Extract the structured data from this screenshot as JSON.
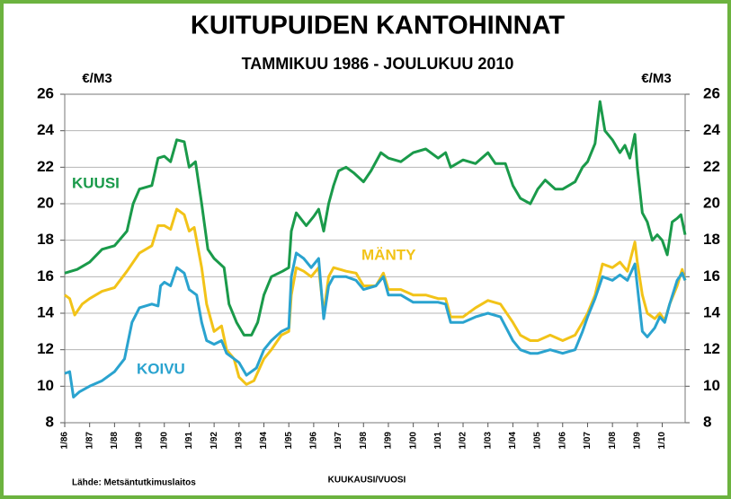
{
  "chart_data": {
    "type": "line",
    "title": "KUITUPUIDEN KANTOHINNAT",
    "subtitle": "TAMMIKUU 1986 - JOULUKUU 2010",
    "y_label": "€/M3",
    "y2_label": "€/M3",
    "x_label": "KUUKAUSI/VUOSI",
    "source": "Lähde: Metsäntutkimuslaitos",
    "xlim": [
      1986,
      2010.92
    ],
    "xticks": [
      {
        "value": 1986,
        "label": "1/86"
      },
      {
        "value": 1987,
        "label": "1/87"
      },
      {
        "value": 1988,
        "label": "1/88"
      },
      {
        "value": 1989,
        "label": "1/89"
      },
      {
        "value": 1990,
        "label": "1/90"
      },
      {
        "value": 1991,
        "label": "1/91"
      },
      {
        "value": 1992,
        "label": "1/92"
      },
      {
        "value": 1993,
        "label": "1/93"
      },
      {
        "value": 1994,
        "label": "1/94"
      },
      {
        "value": 1995,
        "label": "1/95"
      },
      {
        "value": 1996,
        "label": "1/96"
      },
      {
        "value": 1997,
        "label": "1/97"
      },
      {
        "value": 1998,
        "label": "1/98"
      },
      {
        "value": 1999,
        "label": "1/99"
      },
      {
        "value": 2000,
        "label": "1/00"
      },
      {
        "value": 2001,
        "label": "1/01"
      },
      {
        "value": 2002,
        "label": "1/02"
      },
      {
        "value": 2003,
        "label": "1/03"
      },
      {
        "value": 2004,
        "label": "1/04"
      },
      {
        "value": 2005,
        "label": "1/05"
      },
      {
        "value": 2006,
        "label": "1/06"
      },
      {
        "value": 2007,
        "label": "1/07"
      },
      {
        "value": 2008,
        "label": "1/08"
      },
      {
        "value": 2009,
        "label": "1/09"
      },
      {
        "value": 2010,
        "label": "1/10"
      }
    ],
    "ylim": [
      8,
      26
    ],
    "yticks": [
      8,
      10,
      12,
      14,
      16,
      18,
      20,
      22,
      24,
      26
    ],
    "y2lim": [
      8,
      26
    ],
    "y2ticks": [
      8,
      10,
      12,
      14,
      16,
      18,
      20,
      22,
      24,
      26
    ],
    "grid": true,
    "series": [
      {
        "name": "KUUSI",
        "color": "#1a9a4a",
        "x": [
          1986.0,
          1986.5,
          1987.0,
          1987.5,
          1988.0,
          1988.5,
          1988.75,
          1989.0,
          1989.5,
          1989.75,
          1990.0,
          1990.25,
          1990.5,
          1990.8,
          1991.0,
          1991.25,
          1991.5,
          1991.75,
          1992.0,
          1992.4,
          1992.6,
          1992.9,
          1993.2,
          1993.5,
          1993.75,
          1994.0,
          1994.3,
          1994.75,
          1995.0,
          1995.1,
          1995.3,
          1995.7,
          1996.0,
          1996.2,
          1996.4,
          1996.6,
          1996.8,
          1997.0,
          1997.3,
          1997.6,
          1998.0,
          1998.3,
          1998.7,
          1999.0,
          1999.5,
          2000.0,
          2000.5,
          2001.0,
          2001.3,
          2001.5,
          2002.0,
          2002.5,
          2003.0,
          2003.3,
          2003.7,
          2004.0,
          2004.3,
          2004.7,
          2005.0,
          2005.3,
          2005.7,
          2006.0,
          2006.5,
          2006.8,
          2007.0,
          2007.3,
          2007.5,
          2007.7,
          2008.0,
          2008.3,
          2008.5,
          2008.7,
          2008.9,
          2009.0,
          2009.2,
          2009.4,
          2009.6,
          2009.8,
          2010.0,
          2010.2,
          2010.4,
          2010.6,
          2010.75,
          2010.92
        ],
        "values": [
          16.2,
          16.4,
          16.8,
          17.5,
          17.7,
          18.5,
          20.0,
          20.8,
          21.0,
          22.5,
          22.6,
          22.3,
          23.5,
          23.4,
          22.0,
          22.3,
          20.0,
          17.5,
          17.0,
          16.5,
          14.5,
          13.5,
          12.8,
          12.8,
          13.5,
          15.0,
          16.0,
          16.3,
          16.5,
          18.5,
          19.5,
          18.8,
          19.3,
          19.7,
          18.5,
          20.0,
          21.0,
          21.8,
          22.0,
          21.7,
          21.2,
          21.8,
          22.8,
          22.5,
          22.3,
          22.8,
          23.0,
          22.5,
          22.8,
          22.0,
          22.4,
          22.2,
          22.8,
          22.2,
          22.2,
          21.0,
          20.3,
          20.0,
          20.8,
          21.3,
          20.8,
          20.8,
          21.2,
          22.0,
          22.3,
          23.3,
          25.6,
          24.0,
          23.5,
          22.8,
          23.2,
          22.5,
          23.8,
          22.0,
          19.5,
          19.0,
          18.0,
          18.3,
          18.0,
          17.2,
          19.0,
          19.2,
          19.4,
          18.3
        ]
      },
      {
        "name": "MÄNTY",
        "color": "#f2c318",
        "x": [
          1986.0,
          1986.2,
          1986.4,
          1986.7,
          1987.0,
          1987.5,
          1988.0,
          1988.5,
          1989.0,
          1989.5,
          1989.75,
          1990.0,
          1990.25,
          1990.5,
          1990.8,
          1991.0,
          1991.2,
          1991.5,
          1991.7,
          1992.0,
          1992.3,
          1992.5,
          1992.8,
          1993.0,
          1993.3,
          1993.6,
          1994.0,
          1994.3,
          1994.7,
          1995.0,
          1995.1,
          1995.3,
          1995.6,
          1995.9,
          1996.2,
          1996.4,
          1996.6,
          1996.8,
          1997.3,
          1997.7,
          1998.0,
          1998.5,
          1998.8,
          1999.0,
          1999.5,
          2000.0,
          2000.5,
          2001.0,
          2001.3,
          2001.5,
          2002.0,
          2002.5,
          2003.0,
          2003.5,
          2004.0,
          2004.3,
          2004.7,
          2005.0,
          2005.5,
          2006.0,
          2006.5,
          2006.8,
          2007.0,
          2007.3,
          2007.6,
          2008.0,
          2008.3,
          2008.6,
          2008.9,
          2009.0,
          2009.2,
          2009.4,
          2009.7,
          2009.9,
          2010.1,
          2010.3,
          2010.6,
          2010.8,
          2010.92
        ],
        "values": [
          15.0,
          14.8,
          13.9,
          14.5,
          14.8,
          15.2,
          15.4,
          16.3,
          17.3,
          17.7,
          18.8,
          18.8,
          18.6,
          19.7,
          19.4,
          18.5,
          18.7,
          16.5,
          14.5,
          13.0,
          13.3,
          12.0,
          11.5,
          10.5,
          10.1,
          10.3,
          11.5,
          12.0,
          12.8,
          13.0,
          15.0,
          16.5,
          16.3,
          16.0,
          16.5,
          14.0,
          16.0,
          16.5,
          16.3,
          16.2,
          15.5,
          15.5,
          16.2,
          15.3,
          15.3,
          15.0,
          15.0,
          14.8,
          14.8,
          13.8,
          13.8,
          14.3,
          14.7,
          14.5,
          13.5,
          12.8,
          12.5,
          12.5,
          12.8,
          12.5,
          12.8,
          13.5,
          14.0,
          15.0,
          16.7,
          16.5,
          16.8,
          16.3,
          17.9,
          16.8,
          15.0,
          14.0,
          13.7,
          14.0,
          13.6,
          14.5,
          15.5,
          16.4,
          15.8
        ]
      },
      {
        "name": "KOIVU",
        "color": "#2aa3cf",
        "x": [
          1986.0,
          1986.2,
          1986.35,
          1986.6,
          1987.0,
          1987.5,
          1988.0,
          1988.4,
          1988.7,
          1989.0,
          1989.5,
          1989.75,
          1989.85,
          1990.0,
          1990.25,
          1990.5,
          1990.8,
          1991.0,
          1991.3,
          1991.5,
          1991.7,
          1992.0,
          1992.3,
          1992.5,
          1992.8,
          1993.0,
          1993.3,
          1993.7,
          1994.0,
          1994.3,
          1994.7,
          1995.0,
          1995.1,
          1995.3,
          1995.6,
          1995.9,
          1996.2,
          1996.4,
          1996.6,
          1996.8,
          1997.3,
          1997.7,
          1998.0,
          1998.5,
          1998.8,
          1999.0,
          1999.5,
          2000.0,
          2000.5,
          2001.0,
          2001.3,
          2001.5,
          2002.0,
          2002.5,
          2003.0,
          2003.5,
          2004.0,
          2004.3,
          2004.7,
          2005.0,
          2005.5,
          2006.0,
          2006.5,
          2006.8,
          2007.0,
          2007.3,
          2007.6,
          2008.0,
          2008.3,
          2008.6,
          2008.9,
          2009.0,
          2009.2,
          2009.4,
          2009.7,
          2009.9,
          2010.1,
          2010.3,
          2010.6,
          2010.8,
          2010.92
        ],
        "values": [
          10.7,
          10.8,
          9.4,
          9.7,
          10.0,
          10.3,
          10.8,
          11.5,
          13.5,
          14.3,
          14.5,
          14.4,
          15.5,
          15.7,
          15.5,
          16.5,
          16.2,
          15.3,
          15.0,
          13.5,
          12.5,
          12.3,
          12.5,
          11.8,
          11.5,
          11.3,
          10.6,
          11.0,
          12.0,
          12.5,
          13.0,
          13.2,
          16.0,
          17.3,
          17.0,
          16.5,
          17.0,
          13.7,
          15.5,
          16.0,
          16.0,
          15.8,
          15.3,
          15.5,
          16.0,
          15.0,
          15.0,
          14.6,
          14.6,
          14.6,
          14.5,
          13.5,
          13.5,
          13.8,
          14.0,
          13.8,
          12.5,
          12.0,
          11.8,
          11.8,
          12.0,
          11.8,
          12.0,
          13.0,
          13.8,
          14.8,
          16.0,
          15.8,
          16.1,
          15.8,
          16.7,
          15.5,
          13.0,
          12.7,
          13.2,
          13.8,
          13.5,
          14.5,
          15.8,
          16.2,
          15.8
        ]
      }
    ]
  }
}
